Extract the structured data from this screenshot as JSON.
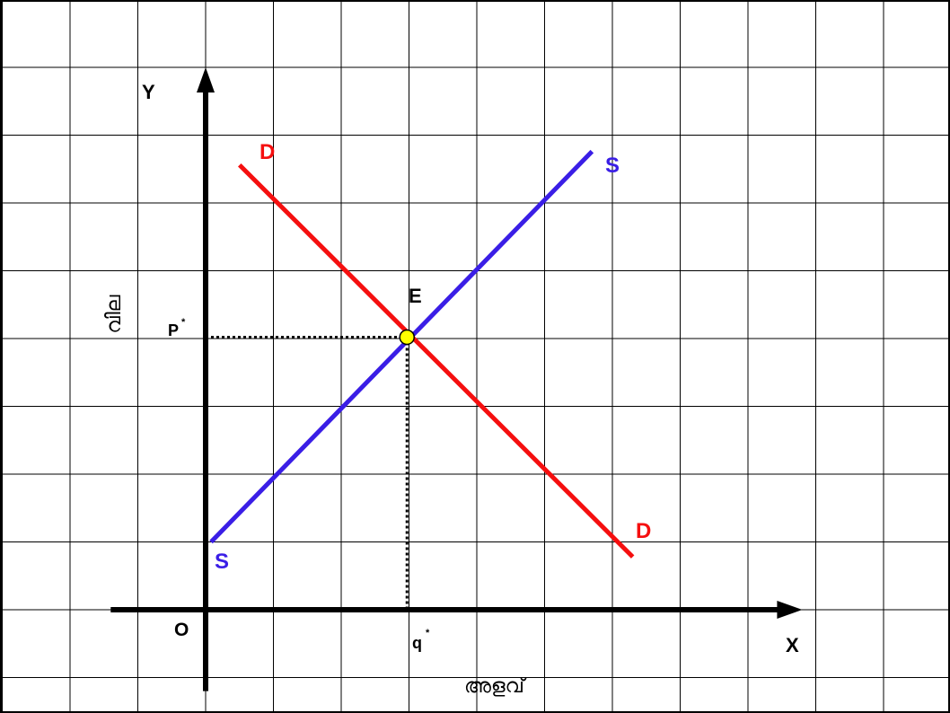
{
  "chart_data": {
    "type": "line",
    "title": "",
    "axes": {
      "x_name": "X",
      "y_name": "Y",
      "origin_label": "O",
      "xlabel": "അളവ്",
      "ylabel": "വില",
      "xlim": [
        -1.4,
        8.8
      ],
      "ylim": [
        -1.2,
        8.0
      ]
    },
    "grid": true,
    "legend": "none",
    "series": [
      {
        "label_start": "S",
        "label_end": "S",
        "color": "#3a1ee6",
        "points": [
          [
            0.08,
            1.0
          ],
          [
            5.7,
            6.76
          ]
        ]
      },
      {
        "label_start": "D",
        "label_end": "D",
        "color": "#f50f0f",
        "points": [
          [
            0.5,
            6.56
          ],
          [
            6.3,
            0.78
          ]
        ]
      }
    ],
    "equilibrium": {
      "label": "E",
      "x": 2.97,
      "y": 4.02,
      "price_label": "P",
      "price_sup": "*",
      "quantity_label": "q",
      "quantity_sup": "*",
      "color": "#ffff00"
    }
  }
}
